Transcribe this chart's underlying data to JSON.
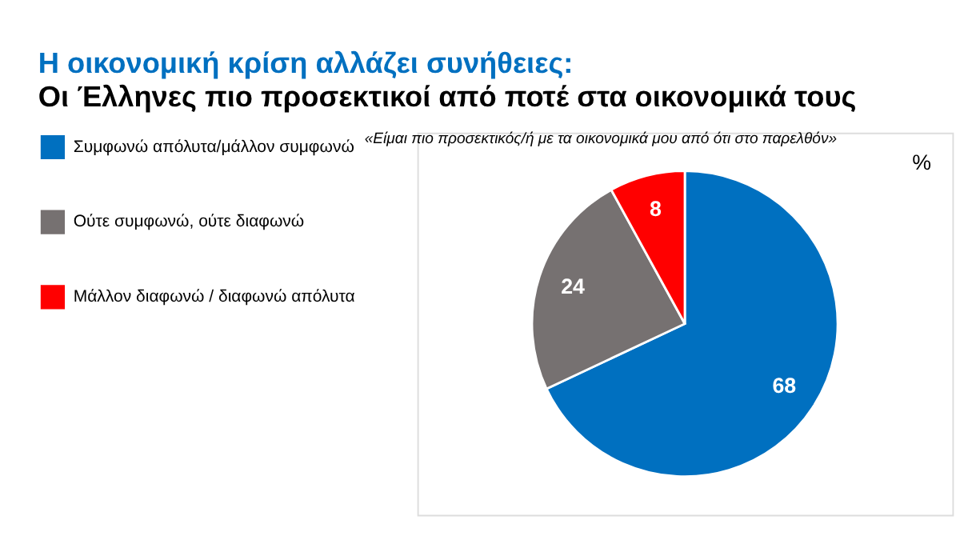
{
  "chart_data": {
    "type": "pie",
    "title": "Η οικονομική κρίση αλλάζει συνήθειες:",
    "subtitle": "Οι Έλληνες πιο προσεκτικοί από ποτέ στα οικονομικά τους",
    "annotations": [
      "«Είμαι πιο προσεκτικός/ή με τα οικονομικά μου από ότι στο παρελθόν»",
      "%"
    ],
    "categories": [
      "Συμφωνώ απόλυτα/μάλλον συμφωνώ",
      "Ούτε συμφωνώ, ούτε διαφωνώ",
      "Μάλλον διαφωνώ / διαφωνώ απόλυτα"
    ],
    "values": [
      68,
      24,
      8
    ],
    "colors": [
      "#0070c0",
      "#767171",
      "#ff0000"
    ],
    "data_labels": true,
    "legend": "left"
  }
}
